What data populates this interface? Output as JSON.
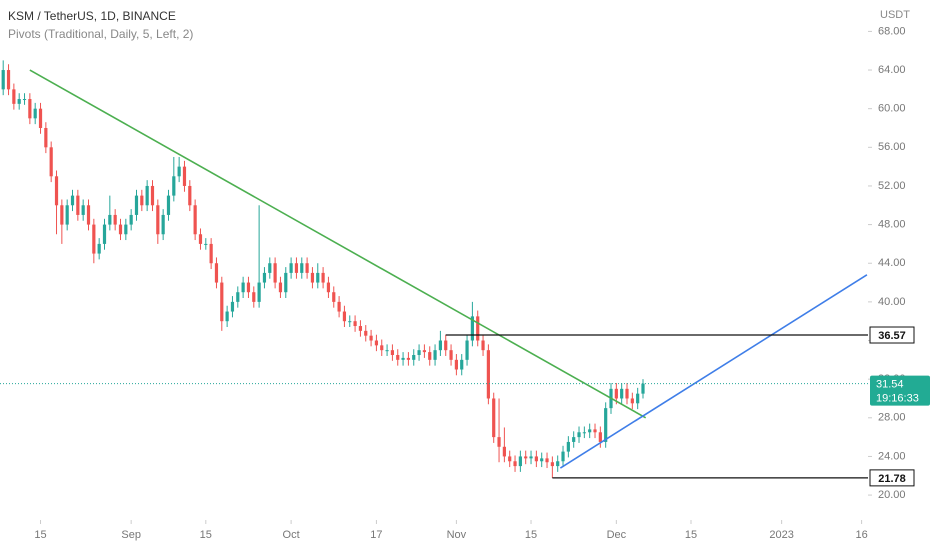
{
  "chart_data": {
    "type": "candlestick",
    "title": "KSM / TetherUS, 1D, BINANCE",
    "subtitle": "Pivots (Traditional, Daily, 5, Left, 2)",
    "y_unit": "USDT",
    "countdown": "19:16:33",
    "up_color": "#26a69a",
    "down_color": "#ef5350",
    "xlim": [
      -0.6,
      162.2
    ],
    "ylim": [
      17.42,
      71.25
    ],
    "xticks": [
      {
        "value": 7,
        "label": "15"
      },
      {
        "value": 24,
        "label": "Sep"
      },
      {
        "value": 38,
        "label": "15"
      },
      {
        "value": 54,
        "label": "Oct"
      },
      {
        "value": 70,
        "label": "17"
      },
      {
        "value": 85,
        "label": "Nov"
      },
      {
        "value": 99,
        "label": "15"
      },
      {
        "value": 115,
        "label": "Dec"
      },
      {
        "value": 129,
        "label": "15"
      },
      {
        "value": 146,
        "label": "2023"
      },
      {
        "value": 161,
        "label": "16"
      }
    ],
    "yticks": [
      {
        "value": 20,
        "label": "20.00"
      },
      {
        "value": 24,
        "label": "24.00"
      },
      {
        "value": 28,
        "label": "28.00"
      },
      {
        "value": 32,
        "label": "32.00"
      },
      {
        "value": 36,
        "label": "36.00"
      },
      {
        "value": 40,
        "label": "40.00"
      },
      {
        "value": 44,
        "label": "44.00"
      },
      {
        "value": 48,
        "label": "48.00"
      },
      {
        "value": 52,
        "label": "52.00"
      },
      {
        "value": 56,
        "label": "56.00"
      },
      {
        "value": 60,
        "label": "60.00"
      },
      {
        "value": 64,
        "label": "64.00"
      },
      {
        "value": 68,
        "label": "68.00"
      }
    ],
    "ohlc": [
      [
        62,
        65,
        61.4,
        64
      ],
      [
        64,
        64.6,
        61.4,
        62
      ],
      [
        62,
        62.6,
        59.9,
        60.5
      ],
      [
        60.5,
        61.6,
        59.9,
        61
      ],
      [
        61,
        61.6,
        60.4,
        61
      ],
      [
        61,
        61.6,
        58.4,
        59
      ],
      [
        59,
        60.6,
        58.4,
        60
      ],
      [
        60,
        60.6,
        57.4,
        58
      ],
      [
        58,
        58.6,
        55.4,
        56
      ],
      [
        56,
        56.6,
        52.4,
        53
      ],
      [
        53,
        53.6,
        47,
        50
      ],
      [
        50,
        50.6,
        46,
        48
      ],
      [
        48,
        50.6,
        47.4,
        50
      ],
      [
        50,
        51.6,
        49.4,
        51
      ],
      [
        51,
        51.6,
        48.4,
        49
      ],
      [
        49,
        50.6,
        48.4,
        50
      ],
      [
        50,
        50.6,
        47.4,
        48
      ],
      [
        48,
        48.6,
        44,
        45
      ],
      [
        45,
        46.6,
        44.4,
        46
      ],
      [
        46,
        48.6,
        45.4,
        48
      ],
      [
        48,
        51,
        47.4,
        49
      ],
      [
        49,
        49.6,
        47.4,
        48
      ],
      [
        48,
        48.6,
        46.4,
        47
      ],
      [
        47,
        48.6,
        46.4,
        48
      ],
      [
        48,
        49.6,
        47.4,
        49
      ],
      [
        49,
        51.6,
        48.4,
        51
      ],
      [
        51,
        51.6,
        49.4,
        50
      ],
      [
        50,
        52.6,
        49.4,
        52
      ],
      [
        52,
        52.6,
        49.4,
        50
      ],
      [
        50,
        50.6,
        46,
        47
      ],
      [
        47,
        49.6,
        46.4,
        49
      ],
      [
        49,
        51.6,
        48.4,
        51
      ],
      [
        51,
        55,
        50.4,
        53
      ],
      [
        53,
        55,
        52.4,
        54
      ],
      [
        54,
        54.6,
        51.4,
        52
      ],
      [
        52,
        52.6,
        49.4,
        50
      ],
      [
        50,
        50.6,
        46.4,
        47
      ],
      [
        47,
        47.6,
        45.4,
        46
      ],
      [
        46,
        46.6,
        45.4,
        46
      ],
      [
        46,
        46.6,
        43.4,
        44
      ],
      [
        44,
        44.6,
        41.4,
        42
      ],
      [
        42,
        42.6,
        37,
        38
      ],
      [
        38,
        39.6,
        37.4,
        39
      ],
      [
        39,
        40.6,
        38.4,
        40
      ],
      [
        40,
        41.6,
        39.4,
        41
      ],
      [
        41,
        42.6,
        40.4,
        42
      ],
      [
        42,
        42.6,
        40.4,
        41
      ],
      [
        41,
        41.6,
        39.4,
        40
      ],
      [
        40,
        50,
        39.4,
        42
      ],
      [
        42,
        43.6,
        41.4,
        43
      ],
      [
        43,
        44.6,
        42.4,
        44
      ],
      [
        44,
        44.6,
        41.4,
        42
      ],
      [
        42,
        42.6,
        40.4,
        41
      ],
      [
        41,
        43.6,
        40.4,
        43
      ],
      [
        43,
        44.6,
        42.4,
        44
      ],
      [
        44,
        44.6,
        42.4,
        43
      ],
      [
        43,
        44.6,
        42.4,
        44
      ],
      [
        44,
        44.6,
        42.4,
        43
      ],
      [
        43,
        43.6,
        41.4,
        42
      ],
      [
        42,
        44,
        41.4,
        43
      ],
      [
        43,
        43.6,
        41.4,
        42
      ],
      [
        42,
        42.6,
        40.4,
        41
      ],
      [
        41,
        41.6,
        39.4,
        40
      ],
      [
        40,
        40.6,
        38.4,
        39
      ],
      [
        39,
        39.6,
        37.4,
        38
      ],
      [
        38,
        38.6,
        37.4,
        38
      ],
      [
        38,
        38.6,
        36.9,
        37.5
      ],
      [
        37.5,
        38.1,
        36.4,
        37
      ],
      [
        37,
        37.6,
        35.9,
        36.5
      ],
      [
        36.5,
        37.1,
        35.4,
        36
      ],
      [
        36,
        36.6,
        34.9,
        35.5
      ],
      [
        35.5,
        36.1,
        34.4,
        35
      ],
      [
        35,
        35.6,
        34.4,
        35
      ],
      [
        35,
        35.6,
        33.9,
        34.5
      ],
      [
        34.5,
        35.1,
        33.4,
        34
      ],
      [
        34,
        34.8,
        33.4,
        34.2
      ],
      [
        34.2,
        34.8,
        33.4,
        34
      ],
      [
        34,
        35.1,
        33.4,
        34.5
      ],
      [
        34.5,
        35.6,
        33.9,
        35
      ],
      [
        35,
        35.6,
        34.2,
        34.8
      ],
      [
        34.8,
        35.4,
        33.4,
        34
      ],
      [
        34,
        35.6,
        33.4,
        35
      ],
      [
        35,
        37,
        34.4,
        36
      ],
      [
        36,
        36.6,
        34.4,
        35
      ],
      [
        35,
        35.6,
        33.4,
        34
      ],
      [
        34,
        34.6,
        32.4,
        33
      ],
      [
        33,
        34.6,
        32.4,
        34
      ],
      [
        34,
        36.6,
        33.4,
        36
      ],
      [
        36,
        40,
        35.4,
        38.5
      ],
      [
        38.5,
        39.1,
        35.4,
        36
      ],
      [
        36,
        36.6,
        34.4,
        35
      ],
      [
        35,
        35.6,
        29.4,
        30
      ],
      [
        30,
        30.6,
        25.4,
        26
      ],
      [
        26,
        30,
        23.4,
        25
      ],
      [
        25,
        27,
        23.4,
        24
      ],
      [
        24,
        24.6,
        22.9,
        23.5
      ],
      [
        23.5,
        24.1,
        22.4,
        23
      ],
      [
        23,
        24.6,
        22.4,
        24
      ],
      [
        24,
        24.6,
        23.2,
        23.8
      ],
      [
        23.8,
        24.6,
        23.2,
        24
      ],
      [
        24,
        24.6,
        22.9,
        23.5
      ],
      [
        23.5,
        24.4,
        22.9,
        23.8
      ],
      [
        23.8,
        24.4,
        22.8,
        23.4
      ],
      [
        23.4,
        24,
        21.78,
        23
      ],
      [
        23,
        24.1,
        22.4,
        23.5
      ],
      [
        23.5,
        25.1,
        22.9,
        24.5
      ],
      [
        24.5,
        26.1,
        23.9,
        25.5
      ],
      [
        25.5,
        26.6,
        24.9,
        26
      ],
      [
        26,
        27.1,
        25.4,
        26.5
      ],
      [
        26.5,
        27.1,
        25.9,
        26.5
      ],
      [
        26.5,
        27.4,
        25.9,
        26.8
      ],
      [
        26.8,
        27.4,
        25.9,
        26.5
      ],
      [
        26.5,
        27.1,
        24.9,
        25.5
      ],
      [
        25.5,
        29.6,
        24.9,
        29
      ],
      [
        29,
        31.6,
        28.4,
        31
      ],
      [
        31,
        31.6,
        29.4,
        30
      ],
      [
        30,
        31.6,
        29.4,
        31
      ],
      [
        31,
        31.6,
        29.4,
        30
      ],
      [
        30,
        30.6,
        28.9,
        29.5
      ],
      [
        29.5,
        31.1,
        28.9,
        30.5
      ],
      [
        30.5,
        32,
        30,
        31.54
      ]
    ],
    "pivots": [
      {
        "value": 36.57,
        "from": 83
      },
      {
        "value": 21.78,
        "from": 103
      }
    ],
    "trendlines": [
      {
        "color": "#4caf50",
        "points": [
          [
            5,
            64
          ],
          [
            120.5,
            28
          ]
        ]
      },
      {
        "color": "#3f7ee8",
        "points": [
          [
            104.5,
            22.8
          ],
          [
            162,
            42.8
          ]
        ]
      }
    ]
  }
}
